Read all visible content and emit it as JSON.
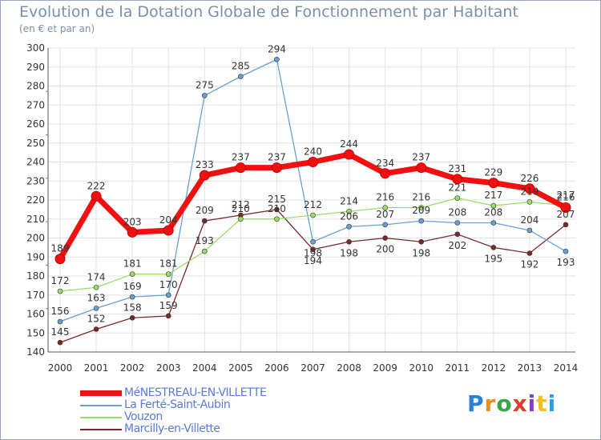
{
  "chart_data": {
    "type": "line",
    "title": "Evolution de la Dotation Globale de Fonctionnement par Habitant",
    "subtitle": "(en € et par an)",
    "xlabel": "",
    "ylabel": "",
    "ylim": [
      140,
      300
    ],
    "yticks": [
      140,
      150,
      160,
      170,
      180,
      190,
      200,
      210,
      220,
      230,
      240,
      250,
      260,
      270,
      280,
      290,
      300
    ],
    "grid": true,
    "legend_position": "bottom-left",
    "x": [
      "2000",
      "2001",
      "2002",
      "2003",
      "2004",
      "2005",
      "2006",
      "2007",
      "2008",
      "2009",
      "2010",
      "2011",
      "2012",
      "2013",
      "2014"
    ],
    "series": [
      {
        "name": "MéNESTREAU-EN-VILLETTE",
        "color": "#ee1111",
        "values": [
          189,
          222,
          203,
          204,
          233,
          237,
          237,
          240,
          244,
          234,
          237,
          231,
          229,
          226,
          216
        ]
      },
      {
        "name": "La Ferté-Saint-Aubin",
        "color": "#6a9fd0",
        "values": [
          156,
          163,
          169,
          170,
          275,
          285,
          294,
          198,
          206,
          207,
          209,
          208,
          208,
          204,
          193
        ]
      },
      {
        "name": "Vouzon",
        "color": "#99dd66",
        "values": [
          172,
          174,
          181,
          181,
          193,
          210,
          210,
          212,
          214,
          216,
          216,
          221,
          217,
          219,
          217
        ]
      },
      {
        "name": "Marcilly-en-Villette",
        "color": "#7a2828",
        "values": [
          145,
          152,
          158,
          159,
          209,
          212,
          215,
          194,
          198,
          200,
          198,
          202,
          195,
          192,
          207
        ]
      }
    ]
  },
  "logo": {
    "letters": [
      "P",
      "r",
      "o",
      "x",
      "i",
      "t",
      "i"
    ],
    "colors": [
      "#2e7fd6",
      "#f08a1c",
      "#3aa64a",
      "#e43c2a",
      "#8a3cc4",
      "#f0c020",
      "#2e9fd6"
    ]
  }
}
